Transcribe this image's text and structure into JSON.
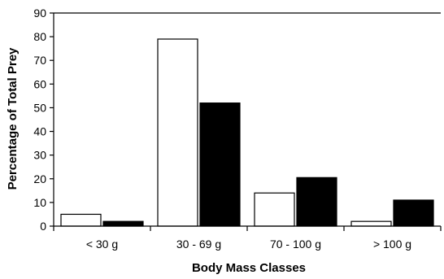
{
  "chart_data": {
    "type": "bar",
    "title": "",
    "xlabel": "Body Mass Classes",
    "ylabel": "Percentage of Total Prey",
    "categories": [
      "< 30 g",
      "30 - 69 g",
      "70 - 100 g",
      "> 100 g"
    ],
    "series": [
      {
        "values": [
          5,
          79,
          14,
          2
        ],
        "color": "#ffffff"
      },
      {
        "values": [
          2,
          52,
          20.5,
          11
        ],
        "color": "#000000"
      }
    ],
    "ylim": [
      0,
      90
    ],
    "yticks": [
      0,
      10,
      20,
      30,
      40,
      50,
      60,
      70,
      80,
      90
    ],
    "grid": false,
    "legend": "none"
  }
}
